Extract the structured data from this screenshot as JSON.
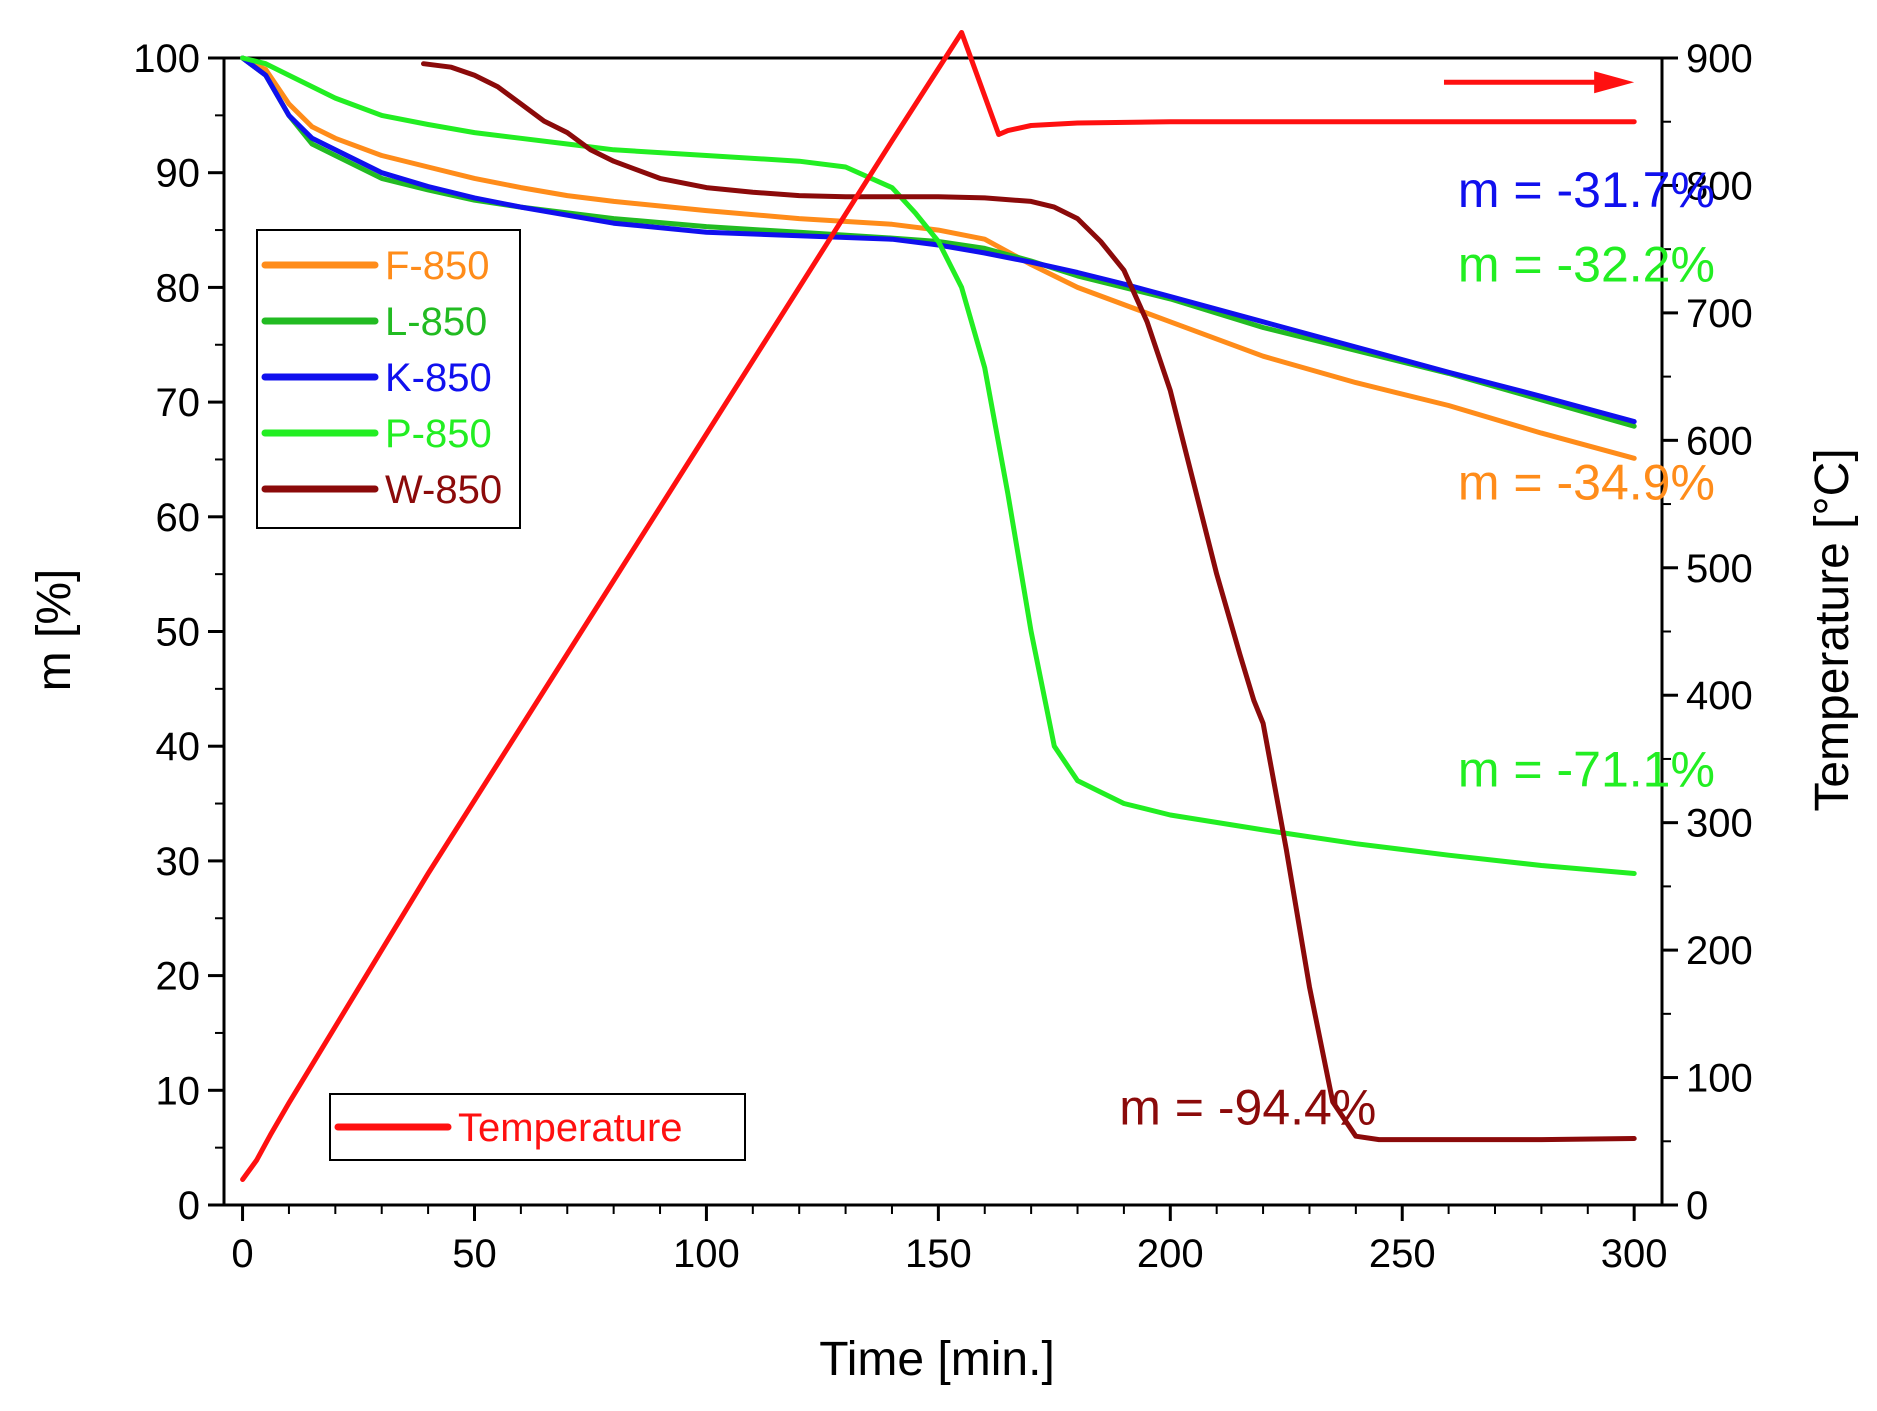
{
  "chart_data": {
    "type": "line",
    "title": "",
    "xlabel": "Time [min.]",
    "ylabel": "m [%]",
    "y2label": "Temperature [°C]",
    "xlim": [
      -4,
      306
    ],
    "ylim": [
      0,
      100
    ],
    "y2lim": [
      0,
      900
    ],
    "xticks": [
      0,
      50,
      100,
      150,
      200,
      250,
      300
    ],
    "yticks": [
      0,
      10,
      20,
      30,
      40,
      50,
      60,
      70,
      80,
      90,
      100
    ],
    "y2ticks": [
      0,
      100,
      200,
      300,
      400,
      500,
      600,
      700,
      800,
      900
    ],
    "series": [
      {
        "name": "F-850",
        "axis": "left",
        "color": "#ff8c1a",
        "x": [
          0,
          5,
          10,
          15,
          20,
          30,
          40,
          50,
          60,
          70,
          80,
          100,
          120,
          140,
          150,
          160,
          170,
          180,
          190,
          200,
          220,
          240,
          260,
          280,
          300
        ],
        "y": [
          100,
          99,
          96,
          94,
          93,
          91.5,
          90.5,
          89.5,
          88.7,
          88,
          87.5,
          86.7,
          86,
          85.5,
          85,
          84.2,
          82,
          80,
          78.5,
          77,
          74,
          71.7,
          69.7,
          67.3,
          65.1
        ]
      },
      {
        "name": "L-850",
        "axis": "left",
        "color": "#22bb22",
        "x": [
          0,
          5,
          10,
          15,
          20,
          30,
          40,
          50,
          60,
          80,
          100,
          120,
          140,
          150,
          160,
          170,
          180,
          190,
          200,
          220,
          240,
          260,
          280,
          300
        ],
        "y": [
          100,
          98.5,
          95,
          92.5,
          91.5,
          89.5,
          88.5,
          87.6,
          87,
          86,
          85.3,
          84.8,
          84.3,
          84,
          83.4,
          82.3,
          81,
          80,
          79,
          76.5,
          74.5,
          72.5,
          70.2,
          67.9
        ]
      },
      {
        "name": "K-850",
        "axis": "left",
        "color": "#1010ee",
        "x": [
          0,
          5,
          10,
          15,
          20,
          30,
          40,
          50,
          60,
          80,
          100,
          120,
          140,
          150,
          160,
          170,
          180,
          190,
          200,
          220,
          240,
          260,
          280,
          300
        ],
        "y": [
          100,
          98.5,
          95,
          93,
          92,
          90,
          88.8,
          87.8,
          87,
          85.6,
          84.8,
          84.5,
          84.2,
          83.7,
          83,
          82.2,
          81.3,
          80.3,
          79.2,
          77,
          74.8,
          72.6,
          70.5,
          68.3
        ]
      },
      {
        "name": "P-850",
        "axis": "left",
        "color": "#22ee22",
        "x": [
          0,
          5,
          10,
          20,
          30,
          40,
          50,
          60,
          70,
          80,
          100,
          120,
          130,
          140,
          145,
          150,
          155,
          160,
          165,
          170,
          175,
          180,
          185,
          190,
          200,
          220,
          240,
          260,
          280,
          300
        ],
        "y": [
          100,
          99.5,
          98.5,
          96.5,
          95,
          94.2,
          93.5,
          93,
          92.5,
          92,
          91.5,
          91,
          90.5,
          88.7,
          86.5,
          84,
          80,
          73,
          62,
          50,
          40,
          37,
          36,
          35,
          34,
          32.7,
          31.5,
          30.5,
          29.6,
          28.9
        ]
      },
      {
        "name": "W-850",
        "axis": "left",
        "color": "#8b0a0a",
        "x": [
          39,
          45,
          50,
          55,
          60,
          65,
          70,
          75,
          80,
          90,
          100,
          110,
          120,
          130,
          140,
          150,
          160,
          170,
          175,
          180,
          185,
          190,
          195,
          200,
          205,
          210,
          215,
          218,
          220,
          225,
          230,
          235,
          240,
          245,
          260,
          280,
          300
        ],
        "y": [
          99.5,
          99.2,
          98.5,
          97.5,
          96,
          94.5,
          93.5,
          92,
          91,
          89.5,
          88.7,
          88.3,
          88,
          87.9,
          87.9,
          87.9,
          87.8,
          87.5,
          87,
          86,
          84,
          81.5,
          77,
          71,
          63,
          55,
          48,
          44,
          42,
          31,
          19,
          9,
          6,
          5.7,
          5.7,
          5.7,
          5.8
        ]
      },
      {
        "name": "Temperature",
        "axis": "right",
        "color": "#ff1010",
        "x": [
          0,
          3,
          6,
          10,
          15,
          25,
          40,
          60,
          80,
          100,
          120,
          140,
          155,
          163,
          165,
          170,
          180,
          200,
          250,
          300
        ],
        "y": [
          20,
          35,
          55,
          80,
          110,
          170,
          260,
          375,
          490,
          605,
          720,
          835,
          920,
          840,
          843,
          847,
          849,
          850,
          850,
          850
        ]
      }
    ],
    "legends": [
      {
        "location": "upper-left",
        "entries": [
          "F-850",
          "L-850",
          "K-850",
          "P-850",
          "W-850"
        ]
      },
      {
        "location": "lower-left",
        "entries": [
          "Temperature"
        ]
      }
    ],
    "annotations": [
      {
        "text": "m = -31.7%",
        "color": "#1010ee",
        "x": 262,
        "y": 87
      },
      {
        "text": "m = -32.2%",
        "color": "#22ee22",
        "x": 262,
        "y": 80.5
      },
      {
        "text": "m = -34.9%",
        "color": "#ff8c1a",
        "x": 262,
        "y": 61.5
      },
      {
        "text": "m = -71.1%",
        "color": "#22ee22",
        "x": 262,
        "y": 36.5
      },
      {
        "text": "m = -94.4%",
        "color": "#8b0a0a",
        "x": 189,
        "y": 7
      }
    ],
    "arrow": {
      "direction": "right",
      "axis": "right",
      "x_from": 259,
      "x_to": 300,
      "y": 881,
      "color": "#ff1010"
    }
  }
}
